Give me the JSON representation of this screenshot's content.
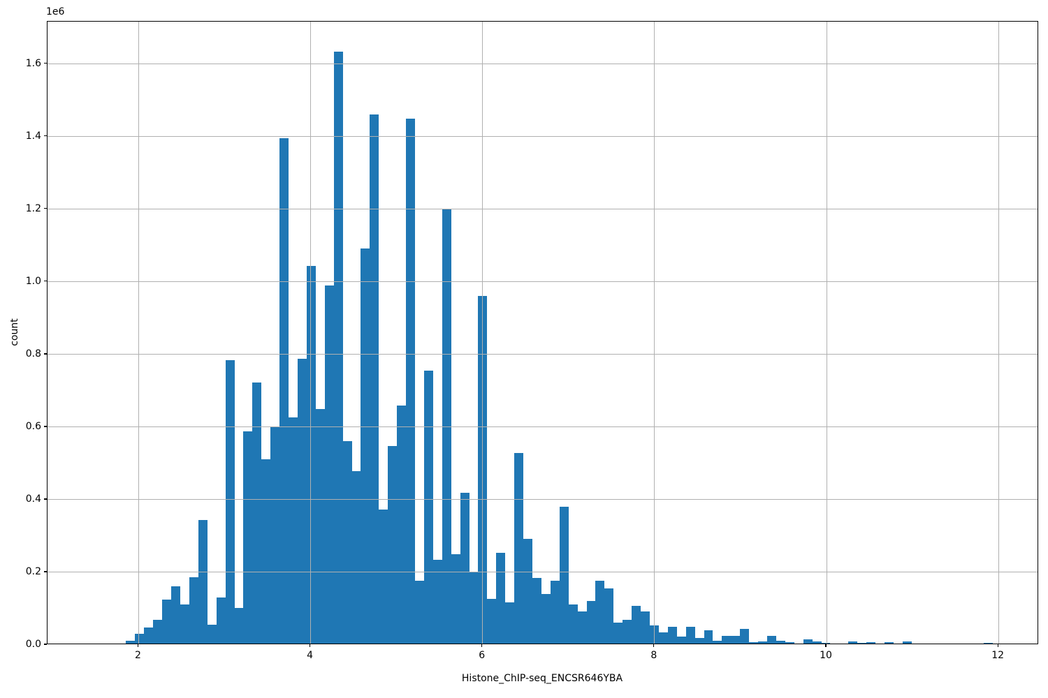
{
  "figure": {
    "background_color": "#ffffff",
    "bar_color": "#1f77b4",
    "grid_color": "#b0b0b0",
    "spine_color": "#000000",
    "text_color": "#000000"
  },
  "chart_data": {
    "type": "bar",
    "subtype": "histogram",
    "title": "",
    "xlabel": "Histone_ChIP-seq_ENCSR646YBA",
    "ylabel": "count",
    "y_offset_label": "1e6",
    "xlim": [
      0.94,
      12.47
    ],
    "ylim": [
      0,
      1717000
    ],
    "grid": true,
    "legend": false,
    "x_ticks": [
      2,
      4,
      6,
      8,
      10,
      12
    ],
    "x_tick_labels": [
      "2",
      "4",
      "6",
      "8",
      "10",
      "12"
    ],
    "y_ticks": [
      0,
      200000,
      400000,
      600000,
      800000,
      1000000,
      1200000,
      1400000,
      1600000
    ],
    "y_tick_labels": [
      "0.0",
      "0.2",
      "0.4",
      "0.6",
      "0.8",
      "1.0",
      "1.2",
      "1.4",
      "1.6"
    ],
    "bin_start": 1.854,
    "bin_width": 0.105,
    "counts": [
      8000,
      26000,
      44000,
      66000,
      122000,
      158000,
      108000,
      182000,
      341000,
      51000,
      126000,
      781000,
      99000,
      584000,
      719000,
      508000,
      597000,
      1393000,
      623000,
      785000,
      1040000,
      647000,
      986000,
      1630000,
      558000,
      474000,
      1088000,
      1458000,
      369000,
      544000,
      656000,
      1446000,
      174000,
      751000,
      231000,
      1198000,
      246000,
      415000,
      198000,
      958000,
      123000,
      250000,
      113000,
      525000,
      289000,
      181000,
      136000,
      173000,
      377000,
      107000,
      88000,
      117000,
      174000,
      152000,
      57000,
      65000,
      104000,
      88000,
      50000,
      31000,
      46000,
      19000,
      46000,
      15000,
      36000,
      8000,
      21000,
      21000,
      40000,
      4000,
      6000,
      21000,
      8000,
      4000,
      0,
      12000,
      6000,
      2000,
      0,
      0,
      6000,
      2000,
      4000,
      0,
      4000,
      0,
      6000,
      0,
      0,
      0,
      0,
      0,
      0,
      0,
      0,
      2500
    ]
  }
}
